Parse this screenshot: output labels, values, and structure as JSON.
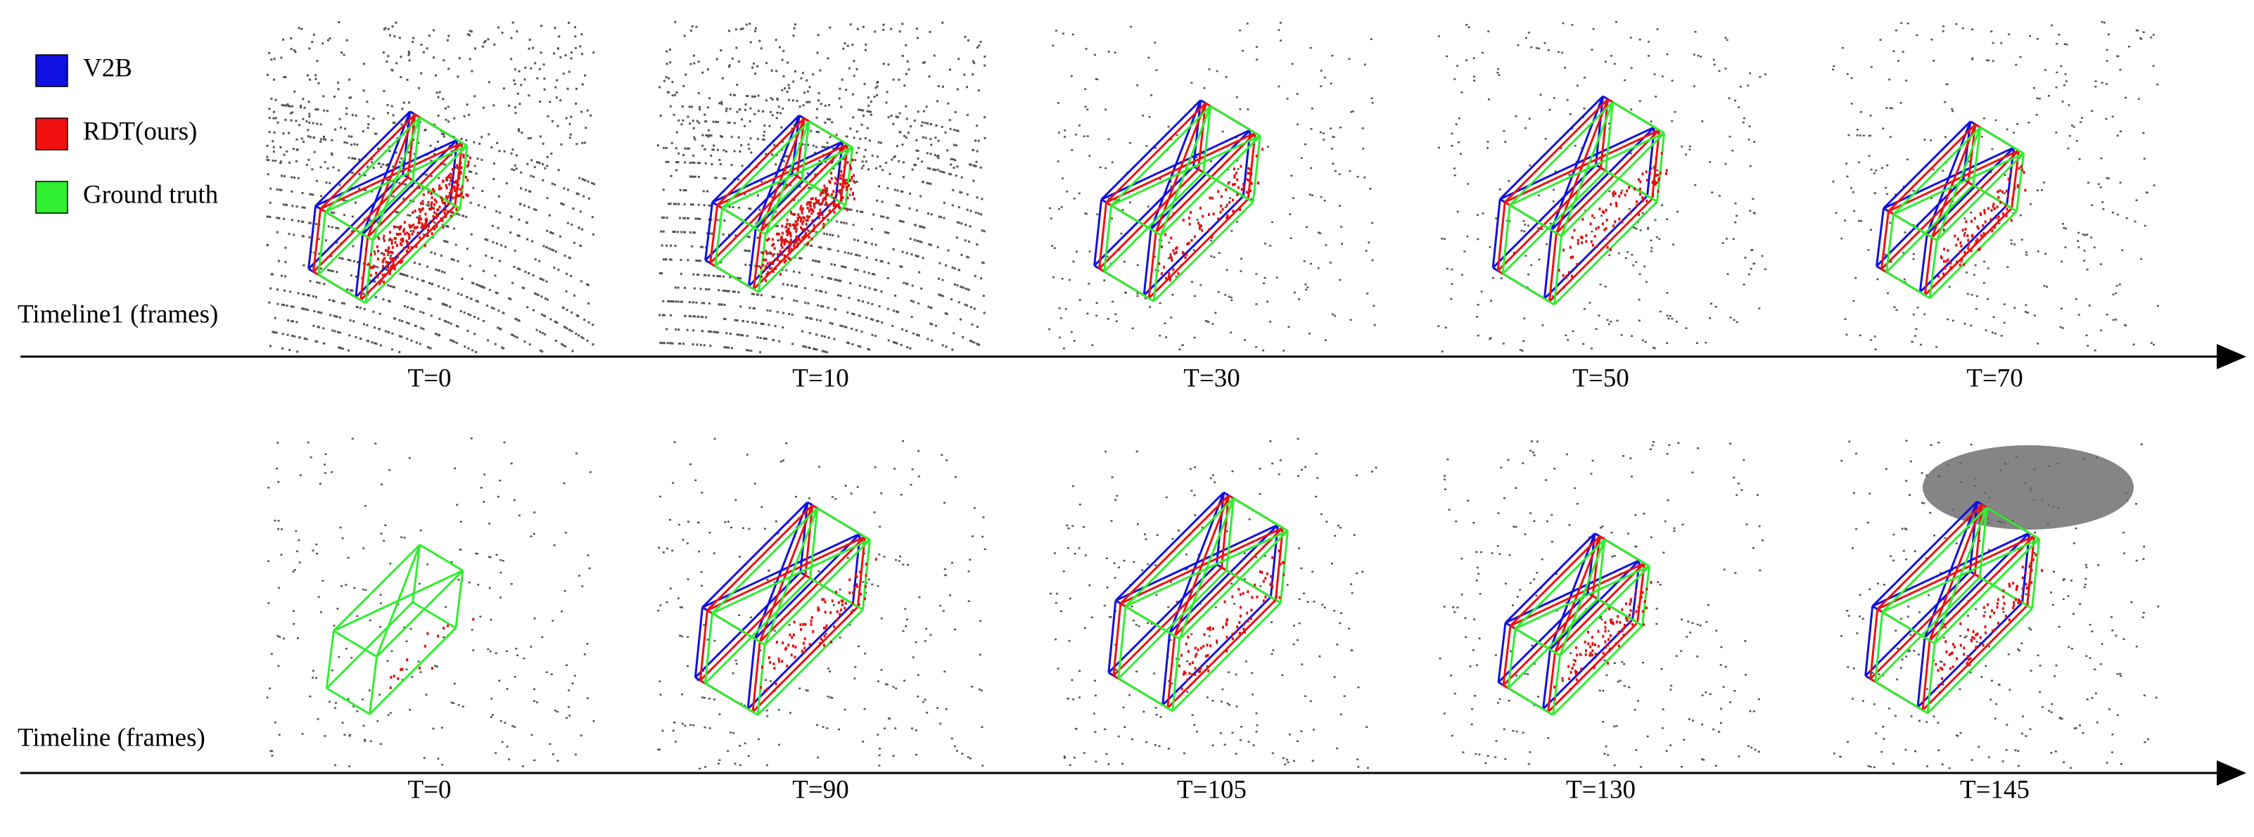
{
  "legend": [
    {
      "label": "V2B",
      "color": "#1010e0"
    },
    {
      "label": "RDT(ours)",
      "color": "#f01010"
    },
    {
      "label": "Ground truth",
      "color": "#30ee30"
    }
  ],
  "rows": [
    {
      "timeline": "Timeline1 (frames)",
      "frames": [
        "T=0",
        "T=10",
        "T=30",
        "T=50",
        "T=70"
      ]
    },
    {
      "timeline": "Timeline (frames)",
      "frames": [
        "T=0",
        "T=90",
        "T=105",
        "T=130",
        "T=145"
      ]
    }
  ]
}
